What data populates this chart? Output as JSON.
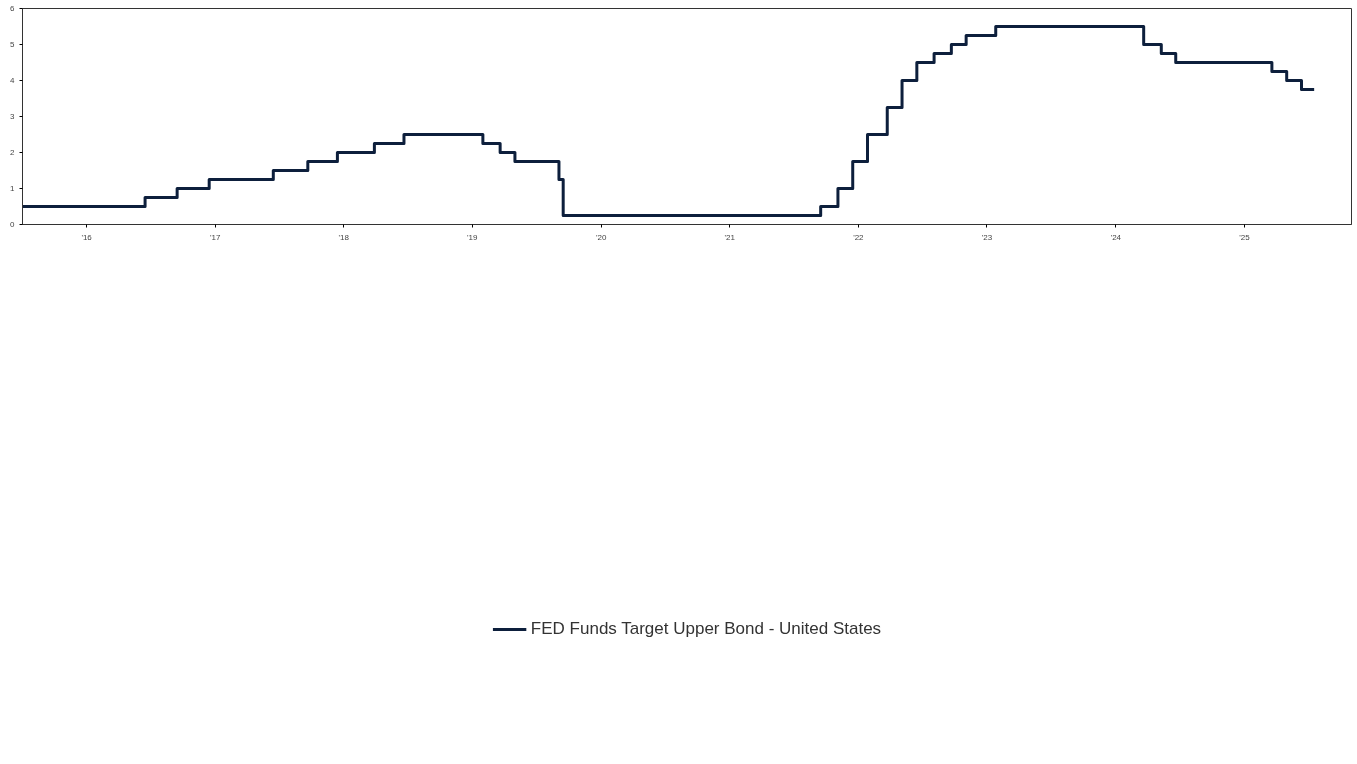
{
  "chart_data": {
    "type": "step",
    "xlim": [
      "2016-01-01",
      "2026-05-01"
    ],
    "ylim": [
      0,
      6
    ],
    "yticks": [
      0,
      1,
      2,
      3,
      4,
      5,
      6
    ],
    "xticks": [
      {
        "value": "2016-07-01",
        "label": "'16"
      },
      {
        "value": "2017-07-01",
        "label": "'17"
      },
      {
        "value": "2018-07-01",
        "label": "'18"
      },
      {
        "value": "2019-07-01",
        "label": "'19"
      },
      {
        "value": "2020-07-01",
        "label": "'20"
      },
      {
        "value": "2021-07-01",
        "label": "'21"
      },
      {
        "value": "2022-07-01",
        "label": "'22"
      },
      {
        "value": "2023-07-01",
        "label": "'23"
      },
      {
        "value": "2024-07-01",
        "label": "'24"
      },
      {
        "value": "2025-07-01",
        "label": "'25"
      }
    ],
    "grid": false,
    "legend": "bottom",
    "series": [
      {
        "name": "FED Funds Target Upper Bond - United States",
        "color": "#0d1f3c",
        "x": [
          "2016-01-01",
          "2016-12-14",
          "2017-03-15",
          "2017-06-14",
          "2017-12-13",
          "2018-03-21",
          "2018-06-13",
          "2018-09-26",
          "2018-12-19",
          "2019-07-31",
          "2019-09-18",
          "2019-10-30",
          "2020-03-03",
          "2020-03-15",
          "2022-03-16",
          "2022-05-04",
          "2022-06-15",
          "2022-07-27",
          "2022-09-21",
          "2022-11-02",
          "2022-12-14",
          "2023-02-01",
          "2023-03-22",
          "2023-05-03",
          "2023-07-26",
          "2024-09-18",
          "2024-11-07",
          "2024-12-18",
          "2025-09-17",
          "2025-10-29",
          "2025-12-10",
          "2026-01-15"
        ],
        "values": [
          0.5,
          0.75,
          1.0,
          1.25,
          1.5,
          1.75,
          2.0,
          2.25,
          2.5,
          2.25,
          2.0,
          1.75,
          1.25,
          0.25,
          0.5,
          1.0,
          1.75,
          2.5,
          3.25,
          4.0,
          4.5,
          4.75,
          5.0,
          5.25,
          5.5,
          5.0,
          4.75,
          4.5,
          4.25,
          4.0,
          3.75,
          3.75
        ]
      }
    ]
  }
}
